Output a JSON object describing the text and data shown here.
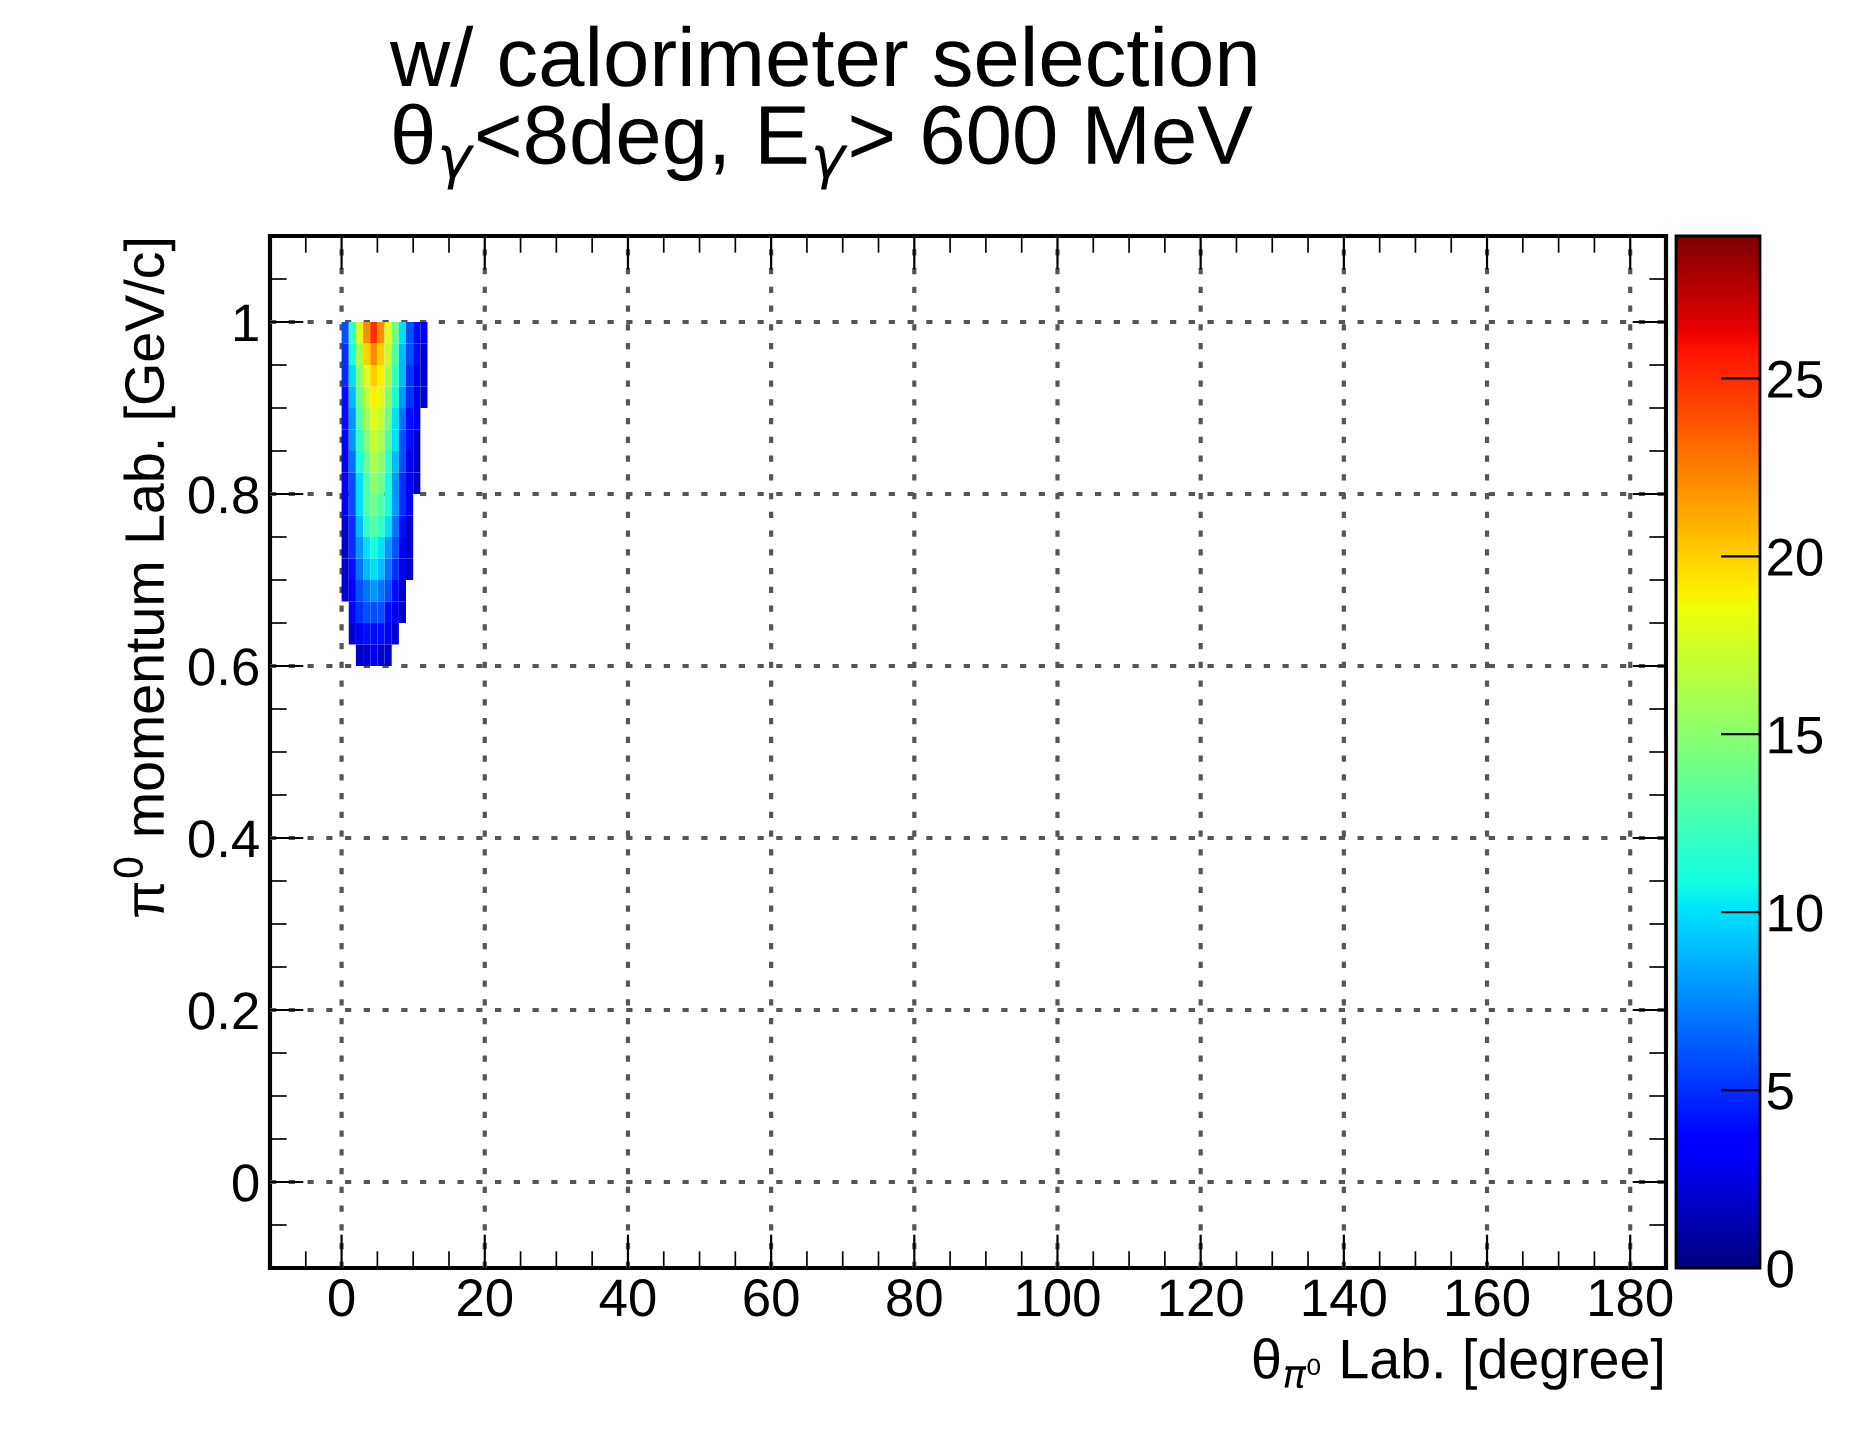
{
  "chart_data": {
    "type": "scatter",
    "title": "w/ calorimeter selection\nθ$_{γ}$<8deg, E$_{γ}$> 600 MeV",
    "xlabel": "θ$_{π⁰}$ Lab. [degree]",
    "ylabel": "π$^{0}$ momentum Lab. [GeV/c]",
    "xlim": [
      -10,
      185
    ],
    "ylim": [
      -0.1,
      1.1
    ],
    "xticks": [
      0,
      20,
      40,
      60,
      80,
      100,
      120,
      140,
      160,
      180
    ],
    "yticks": [
      0,
      0.2,
      0.4,
      0.6,
      0.8,
      1
    ],
    "clim": [
      0,
      29
    ],
    "cticks": [
      0,
      5,
      10,
      15,
      20,
      25
    ],
    "grid": true,
    "marker": "square",
    "x": [
      0.5,
      1.5,
      2.5,
      3.5,
      4.5,
      5.5,
      6.5,
      7.5,
      8.5,
      9.5,
      10.5,
      11.5,
      0.5,
      1.5,
      2.5,
      3.5,
      4.5,
      5.5,
      6.5,
      7.5,
      8.5,
      9.5,
      10.5,
      11.5,
      0.5,
      1.5,
      2.5,
      3.5,
      4.5,
      5.5,
      6.5,
      7.5,
      8.5,
      9.5,
      10.5,
      11.5,
      0.5,
      1.5,
      2.5,
      3.5,
      4.5,
      5.5,
      6.5,
      7.5,
      8.5,
      9.5,
      10.5,
      11.5,
      0.5,
      1.5,
      2.5,
      3.5,
      4.5,
      5.5,
      6.5,
      7.5,
      8.5,
      9.5,
      10.5,
      0.5,
      1.5,
      2.5,
      3.5,
      4.5,
      5.5,
      6.5,
      7.5,
      8.5,
      9.5,
      10.5,
      0.5,
      1.5,
      2.5,
      3.5,
      4.5,
      5.5,
      6.5,
      7.5,
      8.5,
      9.5,
      10.5,
      0.5,
      1.5,
      2.5,
      3.5,
      4.5,
      5.5,
      6.5,
      7.5,
      8.5,
      9.5,
      10.5,
      0.5,
      1.5,
      2.5,
      3.5,
      4.5,
      5.5,
      6.5,
      7.5,
      8.5,
      9.5,
      0.5,
      1.5,
      2.5,
      3.5,
      4.5,
      5.5,
      6.5,
      7.5,
      8.5,
      9.5,
      0.5,
      1.5,
      2.5,
      3.5,
      4.5,
      5.5,
      6.5,
      7.5,
      8.5,
      9.5,
      0.5,
      1.5,
      2.5,
      3.5,
      4.5,
      5.5,
      6.5,
      7.5,
      8.5,
      9.5,
      0.5,
      1.5,
      2.5,
      3.5,
      4.5,
      5.5,
      6.5,
      7.5,
      8.5,
      1.5,
      2.5,
      3.5,
      4.5,
      5.5,
      6.5,
      7.5,
      8.5,
      1.5,
      2.5,
      3.5,
      4.5,
      5.5,
      6.5,
      7.5,
      2.5,
      3.5,
      4.5,
      5.5,
      6.5
    ],
    "values": [
      0.9875,
      0.9875,
      0.9875,
      0.9875,
      0.9875,
      0.9875,
      0.9875,
      0.9875,
      0.9875,
      0.9875,
      0.9875,
      0.9875,
      0.9625,
      0.9625,
      0.9625,
      0.9625,
      0.9625,
      0.9625,
      0.9625,
      0.9625,
      0.9625,
      0.9625,
      0.9625,
      0.9625,
      0.9375,
      0.9375,
      0.9375,
      0.9375,
      0.9375,
      0.9375,
      0.9375,
      0.9375,
      0.9375,
      0.9375,
      0.9375,
      0.9375,
      0.9125,
      0.9125,
      0.9125,
      0.9125,
      0.9125,
      0.9125,
      0.9125,
      0.9125,
      0.9125,
      0.9125,
      0.9125,
      0.9125,
      0.8875,
      0.8875,
      0.8875,
      0.8875,
      0.8875,
      0.8875,
      0.8875,
      0.8875,
      0.8875,
      0.8875,
      0.8875,
      0.8625,
      0.8625,
      0.8625,
      0.8625,
      0.8625,
      0.8625,
      0.8625,
      0.8625,
      0.8625,
      0.8625,
      0.8625,
      0.8375,
      0.8375,
      0.8375,
      0.8375,
      0.8375,
      0.8375,
      0.8375,
      0.8375,
      0.8375,
      0.8375,
      0.8375,
      0.8125,
      0.8125,
      0.8125,
      0.8125,
      0.8125,
      0.8125,
      0.8125,
      0.8125,
      0.8125,
      0.8125,
      0.8125,
      0.7875,
      0.7875,
      0.7875,
      0.7875,
      0.7875,
      0.7875,
      0.7875,
      0.7875,
      0.7875,
      0.7875,
      0.7625,
      0.7625,
      0.7625,
      0.7625,
      0.7625,
      0.7625,
      0.7625,
      0.7625,
      0.7625,
      0.7625,
      0.7375,
      0.7375,
      0.7375,
      0.7375,
      0.7375,
      0.7375,
      0.7375,
      0.7375,
      0.7375,
      0.7375,
      0.7125,
      0.7125,
      0.7125,
      0.7125,
      0.7125,
      0.7125,
      0.7125,
      0.7125,
      0.7125,
      0.7125,
      0.6875,
      0.6875,
      0.6875,
      0.6875,
      0.6875,
      0.6875,
      0.6875,
      0.6875,
      0.6875,
      0.6625,
      0.6625,
      0.6625,
      0.6625,
      0.6625,
      0.6625,
      0.6625,
      0.6625,
      0.6375,
      0.6375,
      0.6375,
      0.6375,
      0.6375,
      0.6375,
      0.6375,
      0.6125,
      0.6125,
      0.6125,
      0.6125,
      0.6125
    ],
    "cvalues": [
      6,
      12,
      18,
      22,
      25,
      22,
      18,
      14,
      10,
      6,
      4,
      3,
      5,
      11,
      16,
      20,
      22,
      20,
      17,
      13,
      9,
      6,
      4,
      2,
      5,
      10,
      15,
      18,
      20,
      19,
      16,
      12,
      9,
      5,
      3,
      2,
      4,
      9,
      14,
      17,
      19,
      18,
      15,
      11,
      8,
      5,
      3,
      2,
      4,
      8,
      13,
      16,
      18,
      17,
      14,
      10,
      7,
      4,
      3,
      3,
      8,
      12,
      15,
      17,
      16,
      13,
      10,
      6,
      4,
      2,
      3,
      7,
      11,
      14,
      16,
      15,
      12,
      9,
      6,
      3,
      2,
      3,
      6,
      10,
      13,
      15,
      14,
      11,
      8,
      5,
      3,
      2,
      3,
      6,
      10,
      13,
      14,
      13,
      11,
      8,
      5,
      3,
      2,
      5,
      9,
      12,
      13,
      12,
      10,
      7,
      4,
      2,
      2,
      5,
      8,
      10,
      11,
      10,
      8,
      6,
      3,
      2,
      2,
      4,
      7,
      9,
      10,
      9,
      7,
      5,
      3,
      2,
      2,
      3,
      6,
      7,
      8,
      7,
      6,
      4,
      2,
      3,
      5,
      6,
      6,
      6,
      4,
      3,
      2,
      2,
      3,
      4,
      4,
      4,
      3,
      2,
      2,
      2,
      3,
      2,
      2
    ]
  }
}
